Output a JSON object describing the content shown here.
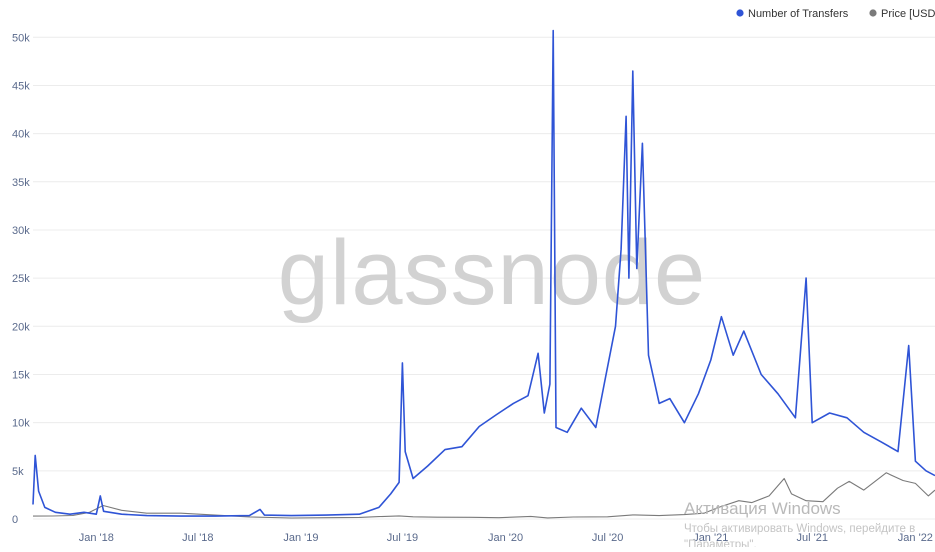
{
  "watermark": "glassnode",
  "os_overlay": {
    "title": "Активация Windows",
    "line1": "Чтобы активировать Windows, перейдите в",
    "line2": "\"Параметры\"."
  },
  "chart_data": {
    "type": "line",
    "title": "",
    "xlabel": "",
    "ylabel": "",
    "ylim": [
      0,
      52000
    ],
    "y_ticks": [
      0,
      5000,
      10000,
      15000,
      20000,
      25000,
      30000,
      35000,
      40000,
      45000,
      50000
    ],
    "y_tick_labels": [
      "0",
      "5k",
      "10k",
      "15k",
      "20k",
      "25k",
      "30k",
      "35k",
      "40k",
      "45k",
      "50k"
    ],
    "xlim": [
      "2017-09-10",
      "2022-02-05"
    ],
    "x_ticks": [
      "2018-01-01",
      "2018-07-01",
      "2019-01-01",
      "2019-07-01",
      "2020-01-01",
      "2020-07-01",
      "2021-01-01",
      "2021-07-01",
      "2022-01-01"
    ],
    "x_tick_labels": [
      "Jan '18",
      "Jul '18",
      "Jan '19",
      "Jul '19",
      "Jan '20",
      "Jul '20",
      "Jan '21",
      "Jul '21",
      "Jan '22"
    ],
    "grid": true,
    "legend_position": "top-right",
    "series": [
      {
        "name": "Number of Transfers",
        "color": "#2f54d6",
        "points": [
          [
            "2017-09-10",
            1500
          ],
          [
            "2017-09-14",
            6600
          ],
          [
            "2017-09-20",
            2900
          ],
          [
            "2017-10-01",
            1200
          ],
          [
            "2017-10-20",
            700
          ],
          [
            "2017-11-15",
            500
          ],
          [
            "2017-12-10",
            700
          ],
          [
            "2018-01-01",
            500
          ],
          [
            "2018-01-08",
            2400
          ],
          [
            "2018-01-14",
            800
          ],
          [
            "2018-02-15",
            500
          ],
          [
            "2018-04-01",
            350
          ],
          [
            "2018-06-01",
            300
          ],
          [
            "2018-08-01",
            300
          ],
          [
            "2018-10-01",
            350
          ],
          [
            "2018-10-20",
            1000
          ],
          [
            "2018-10-28",
            400
          ],
          [
            "2018-12-15",
            350
          ],
          [
            "2019-02-15",
            400
          ],
          [
            "2019-04-15",
            500
          ],
          [
            "2019-05-20",
            1200
          ],
          [
            "2019-06-10",
            2600
          ],
          [
            "2019-06-25",
            3800
          ],
          [
            "2019-07-01",
            16200
          ],
          [
            "2019-07-06",
            7000
          ],
          [
            "2019-07-20",
            4200
          ],
          [
            "2019-08-15",
            5500
          ],
          [
            "2019-09-15",
            7200
          ],
          [
            "2019-10-15",
            7500
          ],
          [
            "2019-11-15",
            9600
          ],
          [
            "2019-12-15",
            10800
          ],
          [
            "2020-01-15",
            12000
          ],
          [
            "2020-02-10",
            12800
          ],
          [
            "2020-02-28",
            17200
          ],
          [
            "2020-03-10",
            11000
          ],
          [
            "2020-03-20",
            14000
          ],
          [
            "2020-03-26",
            50700
          ],
          [
            "2020-03-31",
            9500
          ],
          [
            "2020-04-20",
            9000
          ],
          [
            "2020-05-15",
            11500
          ],
          [
            "2020-06-10",
            9500
          ],
          [
            "2020-06-25",
            14000
          ],
          [
            "2020-07-15",
            20000
          ],
          [
            "2020-07-25",
            28000
          ],
          [
            "2020-08-03",
            41800
          ],
          [
            "2020-08-08",
            25000
          ],
          [
            "2020-08-15",
            46500
          ],
          [
            "2020-08-22",
            26000
          ],
          [
            "2020-09-01",
            39000
          ],
          [
            "2020-09-12",
            17000
          ],
          [
            "2020-10-01",
            12000
          ],
          [
            "2020-10-20",
            12500
          ],
          [
            "2020-11-15",
            10000
          ],
          [
            "2020-12-10",
            13000
          ],
          [
            "2021-01-01",
            16500
          ],
          [
            "2021-01-20",
            21000
          ],
          [
            "2021-02-10",
            17000
          ],
          [
            "2021-03-01",
            19500
          ],
          [
            "2021-04-01",
            15000
          ],
          [
            "2021-05-01",
            13000
          ],
          [
            "2021-06-01",
            10500
          ],
          [
            "2021-06-20",
            25000
          ],
          [
            "2021-07-01",
            10000
          ],
          [
            "2021-08-01",
            11000
          ],
          [
            "2021-09-01",
            10500
          ],
          [
            "2021-10-01",
            9000
          ],
          [
            "2021-11-01",
            8000
          ],
          [
            "2021-12-01",
            7000
          ],
          [
            "2021-12-20",
            18000
          ],
          [
            "2022-01-01",
            6000
          ],
          [
            "2022-01-20",
            5000
          ],
          [
            "2022-02-05",
            4500
          ]
        ]
      },
      {
        "name": "Price [USD]",
        "color": "#7a7a7a",
        "points": [
          [
            "2017-09-10",
            300
          ],
          [
            "2017-10-15",
            310
          ],
          [
            "2017-11-20",
            360
          ],
          [
            "2017-12-20",
            700
          ],
          [
            "2018-01-13",
            1400
          ],
          [
            "2018-02-15",
            900
          ],
          [
            "2018-04-01",
            600
          ],
          [
            "2018-06-01",
            600
          ],
          [
            "2018-08-01",
            400
          ],
          [
            "2018-10-01",
            220
          ],
          [
            "2018-12-15",
            100
          ],
          [
            "2019-02-15",
            140
          ],
          [
            "2019-04-15",
            170
          ],
          [
            "2019-05-20",
            250
          ],
          [
            "2019-06-25",
            320
          ],
          [
            "2019-07-20",
            230
          ],
          [
            "2019-09-01",
            190
          ],
          [
            "2019-11-01",
            180
          ],
          [
            "2019-12-20",
            130
          ],
          [
            "2020-02-15",
            265
          ],
          [
            "2020-03-16",
            110
          ],
          [
            "2020-05-01",
            210
          ],
          [
            "2020-07-01",
            230
          ],
          [
            "2020-08-15",
            430
          ],
          [
            "2020-10-01",
            350
          ],
          [
            "2020-11-15",
            460
          ],
          [
            "2020-12-20",
            600
          ],
          [
            "2021-01-15",
            1200
          ],
          [
            "2021-02-20",
            1900
          ],
          [
            "2021-03-15",
            1700
          ],
          [
            "2021-04-15",
            2400
          ],
          [
            "2021-05-12",
            4200
          ],
          [
            "2021-05-25",
            2600
          ],
          [
            "2021-06-20",
            1900
          ],
          [
            "2021-07-20",
            1800
          ],
          [
            "2021-08-15",
            3200
          ],
          [
            "2021-09-05",
            3900
          ],
          [
            "2021-10-01",
            3000
          ],
          [
            "2021-11-10",
            4800
          ],
          [
            "2021-12-10",
            4000
          ],
          [
            "2022-01-01",
            3700
          ],
          [
            "2022-01-24",
            2400
          ],
          [
            "2022-02-05",
            3000
          ]
        ]
      }
    ]
  }
}
